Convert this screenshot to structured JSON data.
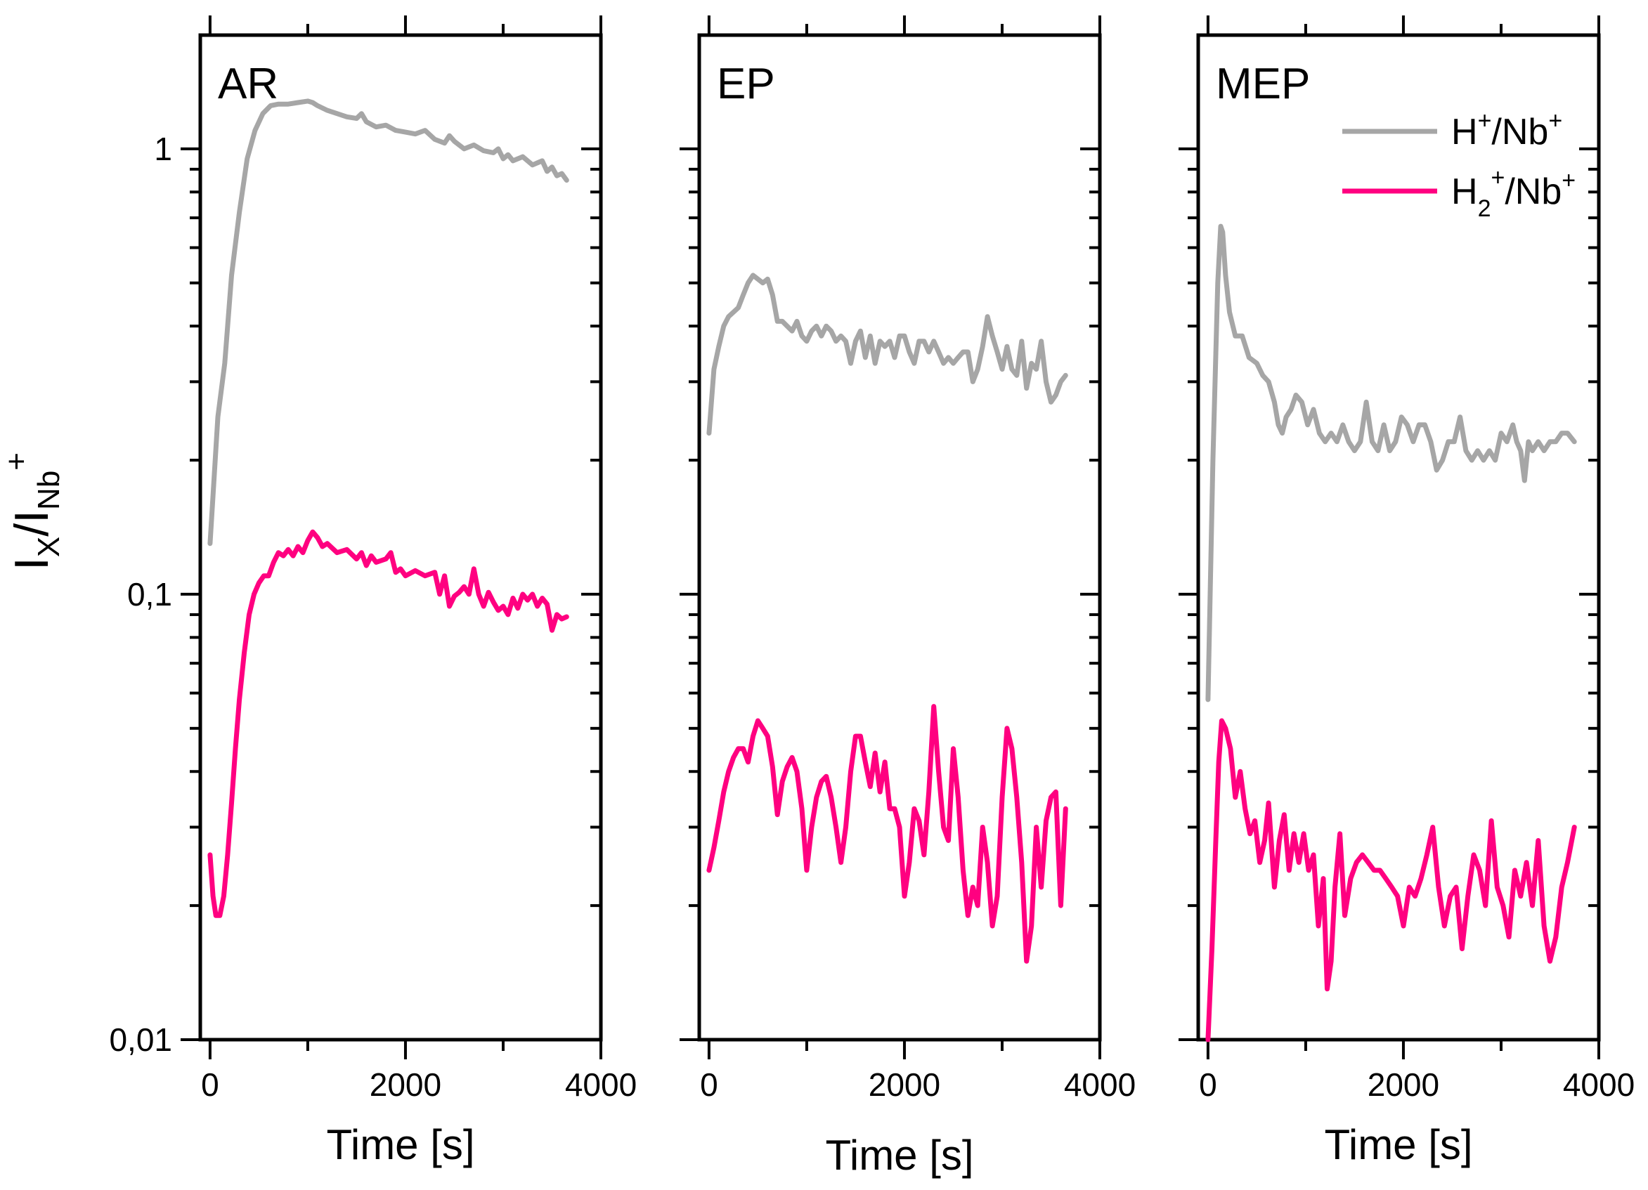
{
  "chart_data": {
    "type": "line",
    "y_scale": "log",
    "ylim": [
      0.01,
      1.8
    ],
    "ytick_values": [
      0.01,
      0.1,
      1
    ],
    "ytick_labels": [
      "0,01",
      "0,1",
      "1"
    ],
    "ylabel": {
      "main": "I",
      "sub_x": "X",
      "slash": "/I",
      "sub_nb": "Nb",
      "sup": "+"
    },
    "xlim": [
      -100,
      4000
    ],
    "xtick_values": [
      0,
      2000,
      4000
    ],
    "xtick_labels": [
      "0",
      "2000",
      "4000"
    ],
    "xlabel": "Time [s]",
    "colors": {
      "h": "#a6a6a6",
      "h2": "#ff0080"
    },
    "legend": [
      {
        "name": "H",
        "sup": "+",
        "rest": "/Nb",
        "sup2": "+",
        "sub": "",
        "color": "#a6a6a6"
      },
      {
        "name": "H",
        "sub": "2",
        "sup": "+",
        "rest": "/Nb",
        "sup2": "+",
        "color": "#ff0080"
      }
    ],
    "panels": [
      {
        "label": "AR",
        "series": [
          {
            "name": "H+/Nb+",
            "color": "#a6a6a6",
            "x": [
              0,
              80,
              150,
              220,
              300,
              380,
              460,
              540,
              620,
              700,
              800,
              900,
              1000,
              1050,
              1100,
              1200,
              1300,
              1400,
              1500,
              1550,
              1600,
              1700,
              1800,
              1900,
              2000,
              2100,
              2200,
              2300,
              2400,
              2450,
              2500,
              2600,
              2700,
              2800,
              2900,
              2950,
              3000,
              3050,
              3100,
              3200,
              3300,
              3400,
              3450,
              3500,
              3550,
              3600,
              3650
            ],
            "y": [
              0.13,
              0.25,
              0.33,
              0.52,
              0.72,
              0.95,
              1.1,
              1.2,
              1.25,
              1.26,
              1.26,
              1.27,
              1.28,
              1.27,
              1.25,
              1.22,
              1.2,
              1.18,
              1.17,
              1.2,
              1.15,
              1.12,
              1.13,
              1.1,
              1.09,
              1.08,
              1.1,
              1.05,
              1.03,
              1.07,
              1.04,
              1.0,
              1.02,
              0.99,
              0.98,
              1.0,
              0.95,
              0.97,
              0.94,
              0.96,
              0.92,
              0.94,
              0.89,
              0.91,
              0.87,
              0.88,
              0.85
            ]
          },
          {
            "name": "H2+/Nb+",
            "color": "#ff0080",
            "x": [
              0,
              30,
              60,
              100,
              140,
              180,
              220,
              260,
              300,
              350,
              400,
              450,
              500,
              550,
              600,
              650,
              700,
              750,
              800,
              850,
              900,
              950,
              1000,
              1050,
              1100,
              1150,
              1200,
              1300,
              1400,
              1500,
              1550,
              1600,
              1650,
              1700,
              1800,
              1850,
              1900,
              1950,
              2000,
              2100,
              2200,
              2300,
              2350,
              2400,
              2450,
              2500,
              2550,
              2600,
              2650,
              2700,
              2750,
              2800,
              2850,
              2900,
              2950,
              3000,
              3050,
              3100,
              3150,
              3200,
              3250,
              3300,
              3350,
              3400,
              3450,
              3500,
              3550,
              3600,
              3650
            ],
            "y": [
              0.026,
              0.021,
              0.019,
              0.019,
              0.021,
              0.026,
              0.034,
              0.045,
              0.058,
              0.074,
              0.09,
              0.1,
              0.106,
              0.11,
              0.11,
              0.118,
              0.124,
              0.122,
              0.126,
              0.122,
              0.128,
              0.124,
              0.132,
              0.138,
              0.134,
              0.128,
              0.13,
              0.124,
              0.126,
              0.12,
              0.124,
              0.116,
              0.122,
              0.118,
              0.12,
              0.124,
              0.112,
              0.114,
              0.11,
              0.113,
              0.11,
              0.112,
              0.1,
              0.11,
              0.094,
              0.099,
              0.101,
              0.104,
              0.1,
              0.114,
              0.1,
              0.094,
              0.101,
              0.096,
              0.092,
              0.094,
              0.09,
              0.098,
              0.093,
              0.1,
              0.097,
              0.1,
              0.094,
              0.098,
              0.095,
              0.083,
              0.09,
              0.088,
              0.089
            ]
          }
        ]
      },
      {
        "label": "EP",
        "series": [
          {
            "name": "H+/Nb+",
            "color": "#a6a6a6",
            "x": [
              0,
              50,
              100,
              150,
              200,
              250,
              300,
              350,
              400,
              450,
              500,
              550,
              600,
              650,
              700,
              750,
              800,
              850,
              900,
              950,
              1000,
              1050,
              1100,
              1150,
              1200,
              1250,
              1300,
              1350,
              1400,
              1450,
              1500,
              1550,
              1600,
              1650,
              1700,
              1750,
              1800,
              1850,
              1900,
              1950,
              2000,
              2050,
              2100,
              2150,
              2200,
              2250,
              2300,
              2350,
              2400,
              2450,
              2500,
              2550,
              2600,
              2650,
              2700,
              2750,
              2800,
              2850,
              2900,
              2950,
              3000,
              3050,
              3100,
              3150,
              3200,
              3250,
              3300,
              3350,
              3400,
              3450,
              3500,
              3550,
              3600,
              3650
            ],
            "y": [
              0.23,
              0.32,
              0.36,
              0.4,
              0.42,
              0.43,
              0.44,
              0.47,
              0.5,
              0.52,
              0.51,
              0.5,
              0.51,
              0.47,
              0.41,
              0.41,
              0.4,
              0.39,
              0.41,
              0.38,
              0.37,
              0.39,
              0.4,
              0.38,
              0.4,
              0.39,
              0.37,
              0.38,
              0.37,
              0.33,
              0.37,
              0.39,
              0.34,
              0.38,
              0.33,
              0.37,
              0.36,
              0.37,
              0.34,
              0.38,
              0.38,
              0.35,
              0.33,
              0.37,
              0.37,
              0.35,
              0.37,
              0.35,
              0.33,
              0.34,
              0.33,
              0.34,
              0.35,
              0.35,
              0.3,
              0.32,
              0.36,
              0.42,
              0.38,
              0.35,
              0.32,
              0.36,
              0.32,
              0.31,
              0.37,
              0.29,
              0.33,
              0.32,
              0.37,
              0.3,
              0.27,
              0.28,
              0.3,
              0.31
            ]
          },
          {
            "name": "H2+/Nb+",
            "color": "#ff0080",
            "x": [
              0,
              50,
              100,
              150,
              200,
              250,
              300,
              350,
              400,
              450,
              500,
              550,
              600,
              650,
              700,
              750,
              800,
              850,
              900,
              950,
              1000,
              1050,
              1100,
              1150,
              1200,
              1250,
              1300,
              1350,
              1400,
              1450,
              1500,
              1550,
              1600,
              1650,
              1700,
              1750,
              1800,
              1850,
              1900,
              1950,
              2000,
              2050,
              2100,
              2150,
              2200,
              2250,
              2300,
              2350,
              2400,
              2450,
              2500,
              2550,
              2600,
              2650,
              2700,
              2750,
              2800,
              2850,
              2900,
              2950,
              3000,
              3050,
              3100,
              3150,
              3200,
              3250,
              3300,
              3350,
              3400,
              3450,
              3500,
              3550,
              3600,
              3650
            ],
            "y": [
              0.024,
              0.027,
              0.031,
              0.036,
              0.04,
              0.043,
              0.045,
              0.045,
              0.042,
              0.048,
              0.052,
              0.05,
              0.048,
              0.041,
              0.032,
              0.038,
              0.041,
              0.043,
              0.04,
              0.033,
              0.024,
              0.03,
              0.035,
              0.038,
              0.039,
              0.035,
              0.03,
              0.025,
              0.03,
              0.04,
              0.048,
              0.048,
              0.042,
              0.037,
              0.044,
              0.036,
              0.042,
              0.033,
              0.033,
              0.03,
              0.021,
              0.025,
              0.033,
              0.031,
              0.026,
              0.036,
              0.056,
              0.04,
              0.03,
              0.028,
              0.045,
              0.035,
              0.024,
              0.019,
              0.022,
              0.02,
              0.03,
              0.025,
              0.018,
              0.021,
              0.035,
              0.05,
              0.045,
              0.035,
              0.025,
              0.015,
              0.018,
              0.03,
              0.022,
              0.031,
              0.035,
              0.036,
              0.02,
              0.033
            ]
          }
        ]
      },
      {
        "label": "MEP",
        "series": [
          {
            "name": "H+/Nb+",
            "color": "#a6a6a6",
            "x": [
              0,
              50,
              100,
              130,
              150,
              180,
              220,
              280,
              350,
              420,
              500,
              560,
              620,
              680,
              720,
              760,
              800,
              850,
              900,
              960,
              1020,
              1080,
              1140,
              1200,
              1260,
              1320,
              1380,
              1440,
              1500,
              1560,
              1620,
              1680,
              1740,
              1800,
              1860,
              1920,
              1980,
              2040,
              2100,
              2160,
              2220,
              2280,
              2340,
              2400,
              2460,
              2520,
              2580,
              2640,
              2700,
              2760,
              2820,
              2880,
              2940,
              3000,
              3060,
              3120,
              3160,
              3200,
              3240,
              3280,
              3320,
              3380,
              3440,
              3500,
              3560,
              3620,
              3680,
              3750
            ],
            "y": [
              0.058,
              0.2,
              0.5,
              0.67,
              0.65,
              0.52,
              0.43,
              0.38,
              0.38,
              0.34,
              0.33,
              0.31,
              0.3,
              0.27,
              0.24,
              0.23,
              0.25,
              0.26,
              0.28,
              0.27,
              0.24,
              0.26,
              0.23,
              0.22,
              0.23,
              0.22,
              0.24,
              0.22,
              0.21,
              0.22,
              0.27,
              0.22,
              0.21,
              0.24,
              0.21,
              0.22,
              0.25,
              0.24,
              0.22,
              0.24,
              0.24,
              0.22,
              0.19,
              0.2,
              0.22,
              0.22,
              0.25,
              0.21,
              0.2,
              0.21,
              0.2,
              0.21,
              0.2,
              0.23,
              0.22,
              0.24,
              0.22,
              0.21,
              0.18,
              0.22,
              0.21,
              0.22,
              0.21,
              0.22,
              0.22,
              0.23,
              0.23,
              0.22
            ]
          },
          {
            "name": "H2+/Nb+",
            "color": "#ff0080",
            "x": [
              0,
              40,
              80,
              110,
              140,
              180,
              230,
              280,
              330,
              380,
              430,
              480,
              530,
              580,
              620,
              680,
              730,
              780,
              830,
              880,
              930,
              980,
              1030,
              1080,
              1130,
              1180,
              1220,
              1260,
              1300,
              1350,
              1400,
              1460,
              1520,
              1580,
              1640,
              1700,
              1760,
              1820,
              1880,
              1940,
              2000,
              2060,
              2120,
              2180,
              2240,
              2300,
              2360,
              2420,
              2480,
              2540,
              2600,
              2660,
              2720,
              2780,
              2840,
              2900,
              2960,
              3020,
              3080,
              3140,
              3200,
              3260,
              3320,
              3380,
              3440,
              3500,
              3560,
              3620,
              3680,
              3750
            ],
            "y": [
              0.01,
              0.016,
              0.028,
              0.042,
              0.052,
              0.05,
              0.045,
              0.035,
              0.04,
              0.033,
              0.029,
              0.031,
              0.025,
              0.028,
              0.034,
              0.022,
              0.028,
              0.032,
              0.024,
              0.029,
              0.025,
              0.029,
              0.024,
              0.026,
              0.018,
              0.023,
              0.013,
              0.015,
              0.022,
              0.029,
              0.019,
              0.023,
              0.025,
              0.026,
              0.025,
              0.024,
              0.024,
              0.023,
              0.022,
              0.021,
              0.018,
              0.022,
              0.021,
              0.023,
              0.026,
              0.03,
              0.022,
              0.018,
              0.021,
              0.022,
              0.016,
              0.021,
              0.026,
              0.024,
              0.02,
              0.031,
              0.022,
              0.02,
              0.017,
              0.024,
              0.021,
              0.025,
              0.02,
              0.028,
              0.018,
              0.015,
              0.017,
              0.022,
              0.025,
              0.03
            ]
          }
        ]
      }
    ]
  }
}
